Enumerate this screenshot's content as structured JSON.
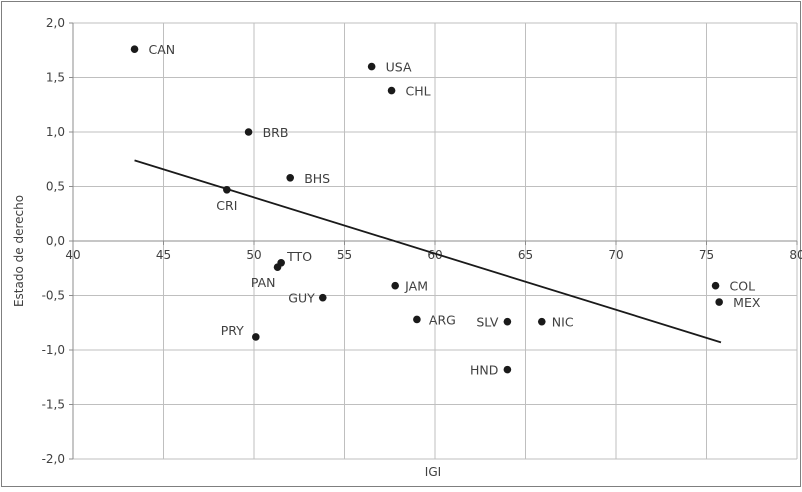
{
  "chart_data": {
    "type": "scatter",
    "title": "",
    "xlabel": "IGI",
    "ylabel": "Estado de derecho",
    "xlim": [
      40,
      80
    ],
    "ylim": [
      -2.0,
      2.0
    ],
    "grid": true,
    "legend": "none",
    "x_ticks": [
      "40",
      "45",
      "50",
      "55",
      "60",
      "65",
      "70",
      "75",
      "80"
    ],
    "y_ticks": [
      "2,0",
      "1,5",
      "1,0",
      "0,5",
      "0,0",
      "-0,5",
      "-1,0",
      "-1,5",
      "-2,0"
    ],
    "points": [
      {
        "label": "CAN",
        "x": 43.4,
        "y": 1.76
      },
      {
        "label": "USA",
        "x": 56.5,
        "y": 1.6
      },
      {
        "label": "CHL",
        "x": 57.6,
        "y": 1.38
      },
      {
        "label": "BRB",
        "x": 49.7,
        "y": 1.0
      },
      {
        "label": "BHS",
        "x": 52.0,
        "y": 0.58
      },
      {
        "label": "CRI",
        "x": 48.5,
        "y": 0.47
      },
      {
        "label": "TTO",
        "x": 51.5,
        "y": -0.2
      },
      {
        "label": "PAN",
        "x": 51.3,
        "y": -0.24
      },
      {
        "label": "GUY",
        "x": 53.8,
        "y": -0.52
      },
      {
        "label": "JAM",
        "x": 57.8,
        "y": -0.41
      },
      {
        "label": "ARG",
        "x": 59.0,
        "y": -0.72
      },
      {
        "label": "PRY",
        "x": 50.1,
        "y": -0.88
      },
      {
        "label": "SLV",
        "x": 64.0,
        "y": -0.74
      },
      {
        "label": "NIC",
        "x": 65.9,
        "y": -0.74
      },
      {
        "label": "HND",
        "x": 64.0,
        "y": -1.18
      },
      {
        "label": "COL",
        "x": 75.5,
        "y": -0.41
      },
      {
        "label": "MEX",
        "x": 75.7,
        "y": -0.56
      }
    ],
    "trendline": {
      "x": [
        43.4,
        75.8
      ],
      "y": [
        0.74,
        -0.93
      ]
    },
    "colors": {
      "points": "#1a1a1a",
      "grid": "#bfbfbf",
      "axis": "#8c8c8c",
      "text": "#404040",
      "trendline": "#1a1a1a"
    }
  }
}
